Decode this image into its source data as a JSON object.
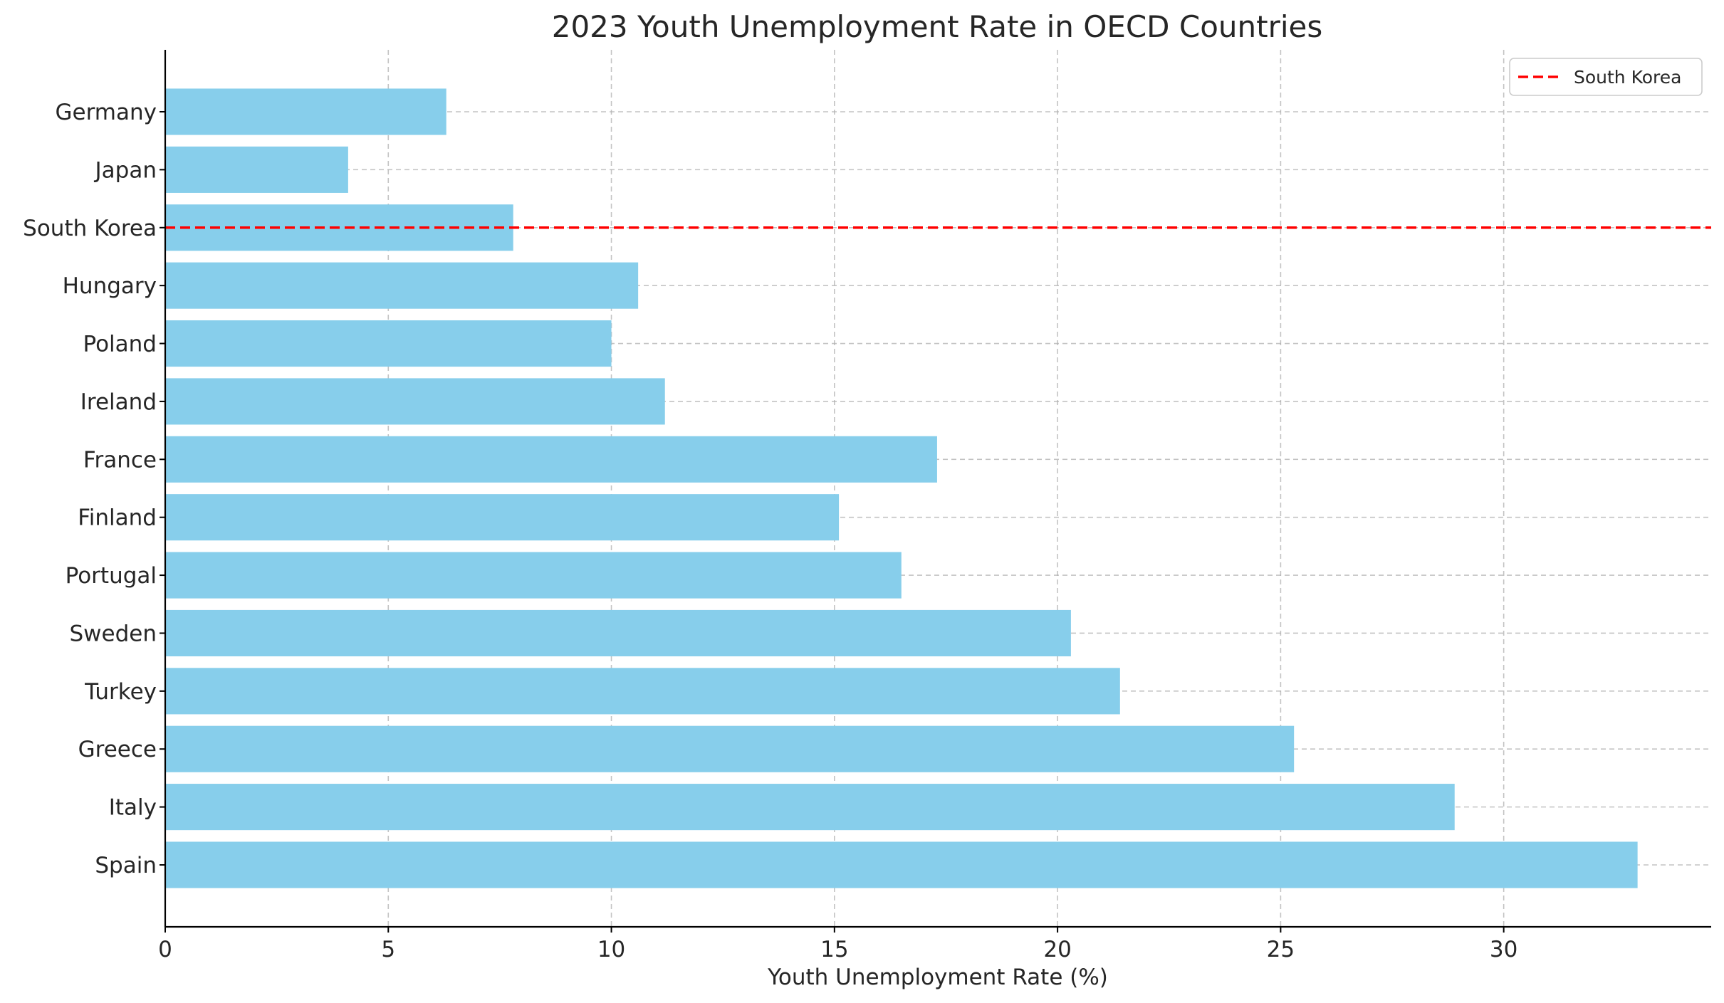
{
  "chart_data": {
    "type": "bar",
    "orientation": "horizontal",
    "title": "2023 Youth Unemployment Rate in OECD Countries",
    "xlabel": "Youth Unemployment Rate (%)",
    "ylabel": "",
    "xlim": [
      0,
      34.65
    ],
    "xticks": [
      0,
      5,
      10,
      15,
      20,
      25,
      30
    ],
    "grid": true,
    "categories": [
      "Spain",
      "Italy",
      "Greece",
      "Turkey",
      "Sweden",
      "Portugal",
      "Finland",
      "France",
      "Ireland",
      "Poland",
      "Hungary",
      "South Korea",
      "Japan",
      "Germany"
    ],
    "values": [
      33.0,
      28.9,
      25.3,
      21.4,
      20.3,
      16.5,
      15.1,
      17.3,
      11.2,
      10.0,
      10.6,
      7.8,
      4.1,
      6.3
    ],
    "bar_color": "#87ceeb",
    "reference_line": {
      "category": "South Korea",
      "label": "South Korea",
      "color": "#ff0000",
      "style": "dashed"
    },
    "legend": {
      "position": "top-right",
      "entries": [
        "South Korea"
      ]
    }
  }
}
